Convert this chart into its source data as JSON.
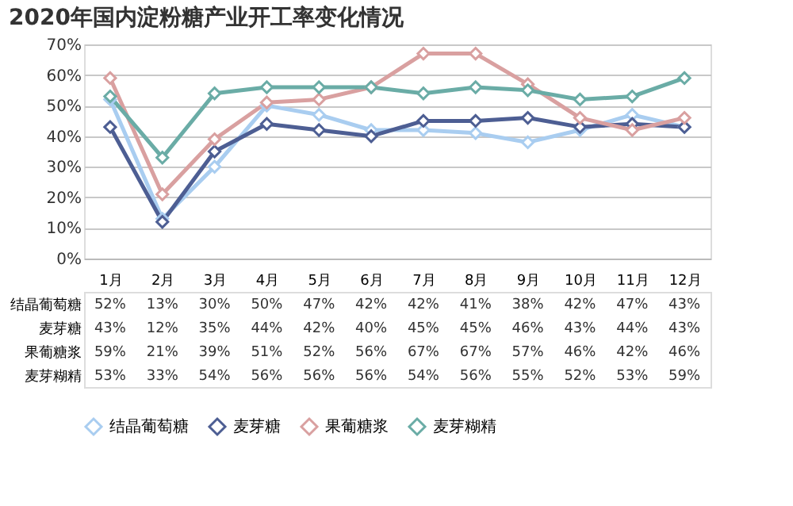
{
  "chart_data": {
    "type": "line",
    "title": "2020年国内淀粉糖产业开工率变化情况",
    "categories": [
      "1月",
      "2月",
      "3月",
      "4月",
      "5月",
      "6月",
      "7月",
      "8月",
      "9月",
      "10月",
      "11月",
      "12月"
    ],
    "series": [
      {
        "name": "结晶葡萄糖",
        "color": "#a9cdf0",
        "values": [
          52,
          13,
          30,
          50,
          47,
          42,
          42,
          41,
          38,
          42,
          47,
          43
        ],
        "value_labels": [
          "52%",
          "13%",
          "30%",
          "50%",
          "47%",
          "42%",
          "42%",
          "41%",
          "38%",
          "42%",
          "47%",
          "43%"
        ]
      },
      {
        "name": "麦芽糖",
        "color": "#4d5e93",
        "values": [
          43,
          12,
          35,
          44,
          42,
          40,
          45,
          45,
          46,
          43,
          44,
          43
        ],
        "value_labels": [
          "43%",
          "12%",
          "35%",
          "44%",
          "42%",
          "40%",
          "45%",
          "45%",
          "46%",
          "43%",
          "44%",
          "43%"
        ]
      },
      {
        "name": "果葡糖浆",
        "color": "#d9a0a0",
        "values": [
          59,
          21,
          39,
          51,
          52,
          56,
          67,
          67,
          57,
          46,
          42,
          46
        ],
        "value_labels": [
          "59%",
          "21%",
          "39%",
          "51%",
          "52%",
          "56%",
          "67%",
          "67%",
          "57%",
          "46%",
          "42%",
          "46%"
        ]
      },
      {
        "name": "麦芽糊精",
        "color": "#6aaca6",
        "values": [
          53,
          33,
          54,
          56,
          56,
          56,
          54,
          56,
          55,
          52,
          53,
          59
        ],
        "value_labels": [
          "53%",
          "33%",
          "54%",
          "56%",
          "56%",
          "56%",
          "54%",
          "56%",
          "55%",
          "52%",
          "53%",
          "59%"
        ]
      }
    ],
    "ylim": [
      0,
      70
    ],
    "yticks": [
      {
        "value": 0,
        "label": "0%"
      },
      {
        "value": 10,
        "label": "10%"
      },
      {
        "value": 20,
        "label": "20%"
      },
      {
        "value": 30,
        "label": "30%"
      },
      {
        "value": 40,
        "label": "40%"
      },
      {
        "value": 50,
        "label": "50%"
      },
      {
        "value": 60,
        "label": "60%"
      },
      {
        "value": 70,
        "label": "70%"
      }
    ],
    "grid": "y",
    "legend": "bottom",
    "marker": "diamond",
    "line_style": "solid"
  }
}
